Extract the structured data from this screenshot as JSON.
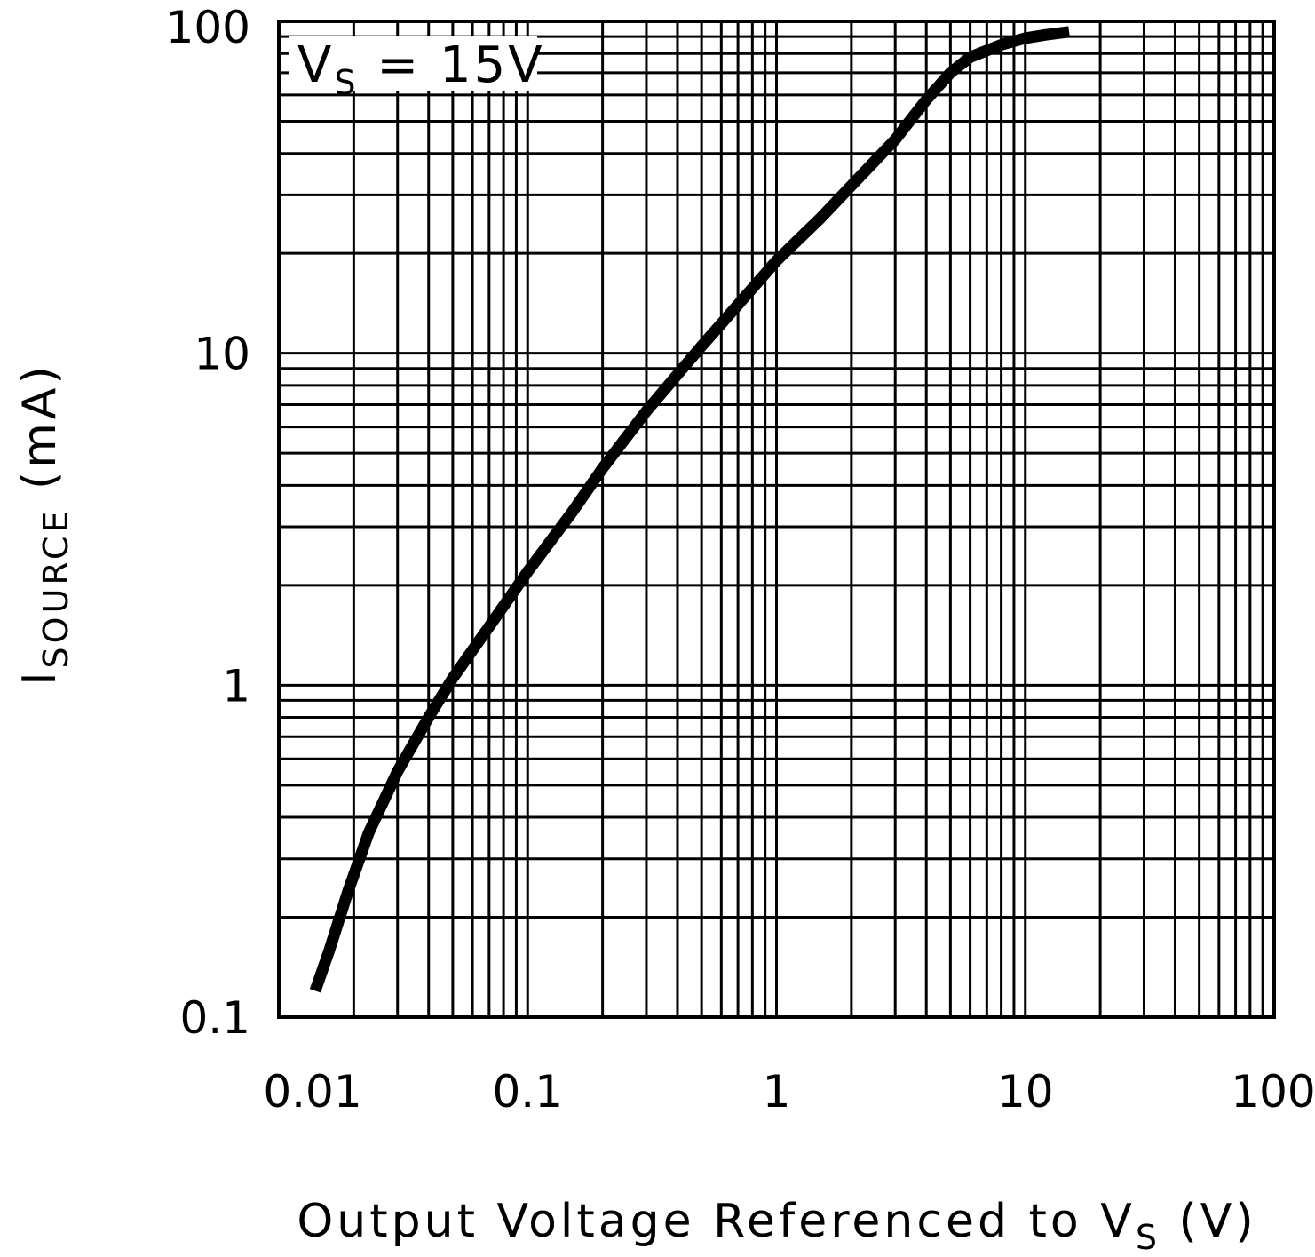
{
  "chart_data": {
    "type": "line",
    "x_scale": "log",
    "y_scale": "log",
    "xlim": [
      0.01,
      100
    ],
    "ylim": [
      0.1,
      100
    ],
    "grid": true,
    "xlabel": {
      "main": "Output Voltage Referenced to V",
      "sub": "S",
      "tail": " (V)"
    },
    "ylabel": {
      "main": "I",
      "sub": "SOURCE",
      "tail": " (mA)"
    },
    "annotation": {
      "main": "V",
      "sub": "S",
      "tail": " = 15V"
    },
    "x_ticks": [
      {
        "value": 0.01,
        "label": "0.01"
      },
      {
        "value": 0.1,
        "label": "0.1"
      },
      {
        "value": 1,
        "label": "1"
      },
      {
        "value": 10,
        "label": "10"
      },
      {
        "value": 100,
        "label": "100"
      }
    ],
    "y_ticks": [
      {
        "value": 0.1,
        "label": "0.1"
      },
      {
        "value": 1,
        "label": "1"
      },
      {
        "value": 10,
        "label": "10"
      },
      {
        "value": 100,
        "label": "100"
      }
    ],
    "series": [
      {
        "color": "#000000",
        "points": [
          [
            0.014,
            0.12
          ],
          [
            0.016,
            0.16
          ],
          [
            0.019,
            0.24
          ],
          [
            0.023,
            0.36
          ],
          [
            0.03,
            0.55
          ],
          [
            0.04,
            0.8
          ],
          [
            0.05,
            1.05
          ],
          [
            0.07,
            1.5
          ],
          [
            0.1,
            2.2
          ],
          [
            0.15,
            3.3
          ],
          [
            0.2,
            4.5
          ],
          [
            0.3,
            6.7
          ],
          [
            0.5,
            10.5
          ],
          [
            0.7,
            14
          ],
          [
            1.0,
            19
          ],
          [
            1.5,
            25.5
          ],
          [
            2.0,
            32
          ],
          [
            3.0,
            44
          ],
          [
            4.0,
            58
          ],
          [
            5.0,
            70
          ],
          [
            6.0,
            78
          ],
          [
            8.0,
            85
          ],
          [
            10.0,
            89
          ],
          [
            12.0,
            91
          ],
          [
            15.0,
            93
          ]
        ]
      }
    ]
  }
}
